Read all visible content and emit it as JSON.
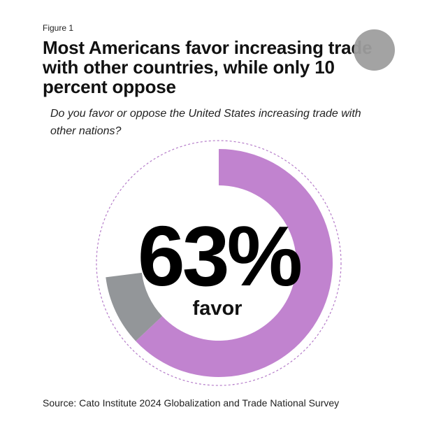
{
  "figure_label": "Figure 1",
  "title": "Most Americans favor increasing trade with other countries, while only 10 percent oppose",
  "subtitle": "Do you favor or oppose the United States increasing trade with other nations?",
  "source": "Source: Cato Institute 2024 Globalization and Trade National Survey",
  "center_value": "63%",
  "center_label": "favor",
  "colors": {
    "favor": "#c183cf",
    "oppose": "#939699",
    "outline": "#b57cc9"
  },
  "chart_data": {
    "type": "pie",
    "title": "Most Americans favor increasing trade with other countries, while only 10 percent oppose",
    "series": [
      {
        "name": "",
        "labels": [
          "favor",
          "oppose"
        ],
        "values": [
          63,
          10
        ]
      }
    ]
  }
}
